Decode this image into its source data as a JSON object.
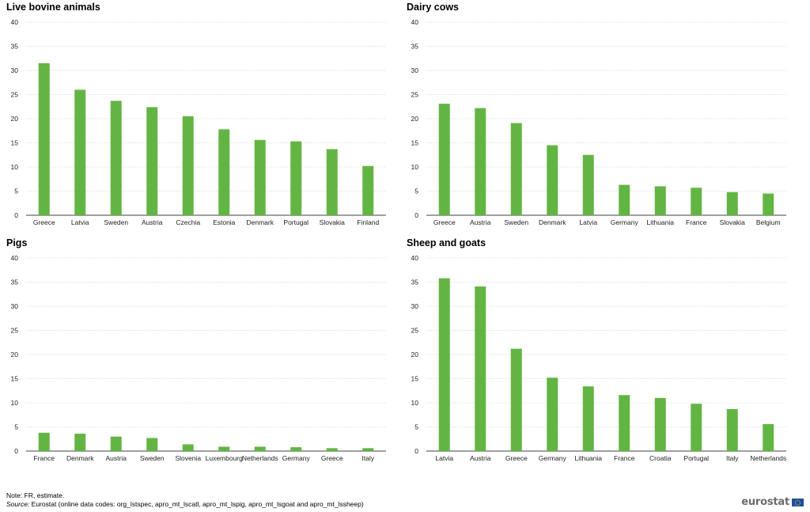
{
  "chart_data": [
    {
      "type": "bar",
      "title": "Live bovine animals",
      "categories": [
        "Greece",
        "Latvia",
        "Sweden",
        "Austria",
        "Czechia",
        "Estonia",
        "Denmark",
        "Portugal",
        "Slovakia",
        "Finland"
      ],
      "values": [
        31.5,
        26.0,
        23.7,
        22.4,
        20.5,
        17.8,
        15.6,
        15.3,
        13.7,
        10.2
      ],
      "ylim": [
        0,
        40
      ],
      "yticks": [
        0,
        5,
        10,
        15,
        20,
        25,
        30,
        35,
        40
      ],
      "grid": true
    },
    {
      "type": "bar",
      "title": "Dairy cows",
      "categories": [
        "Greece",
        "Austria",
        "Sweden",
        "Denmark",
        "Latvia",
        "Germany",
        "Lithuania",
        "France",
        "Slovakia",
        "Belgium"
      ],
      "values": [
        23.1,
        22.2,
        19.1,
        14.5,
        12.5,
        6.3,
        6.0,
        5.7,
        4.8,
        4.5
      ],
      "ylim": [
        0,
        40
      ],
      "yticks": [
        0,
        5,
        10,
        15,
        20,
        25,
        30,
        35,
        40
      ],
      "grid": true
    },
    {
      "type": "bar",
      "title": "Pigs",
      "categories": [
        "France",
        "Denmark",
        "Austria",
        "Sweden",
        "Slovenia",
        "Luxembourg",
        "Netherlands",
        "Germany",
        "Greece",
        "Italy"
      ],
      "values": [
        3.8,
        3.6,
        3.0,
        2.7,
        1.4,
        0.9,
        0.9,
        0.8,
        0.6,
        0.6
      ],
      "ylim": [
        0,
        40
      ],
      "yticks": [
        0,
        5,
        10,
        15,
        20,
        25,
        30,
        35,
        40
      ],
      "grid": true
    },
    {
      "type": "bar",
      "title": "Sheep and goats",
      "categories": [
        "Latvia",
        "Austria",
        "Greece",
        "Germany",
        "Lithuania",
        "France",
        "Croatia",
        "Portugal",
        "Italy",
        "Netherlands"
      ],
      "values": [
        35.8,
        34.1,
        21.2,
        15.2,
        13.4,
        11.6,
        11.0,
        9.8,
        8.7,
        5.6
      ],
      "ylim": [
        0,
        40
      ],
      "yticks": [
        0,
        5,
        10,
        15,
        20,
        25,
        30,
        35,
        40
      ],
      "grid": true
    }
  ],
  "footer": {
    "note": "Note: FR,  estimate.",
    "source_label": "Source:",
    "source_text": " Eurostat (online data codes: org_lstspec, apro_mt_lscatl, apro_mt_lspig, apro_mt_lsgoat and apro_mt_lssheep)"
  },
  "logo": {
    "text": "eurostat",
    "icon": "eu-flag-icon"
  },
  "colors": {
    "bar": "#63b543",
    "grid": "#c8c8c8"
  }
}
